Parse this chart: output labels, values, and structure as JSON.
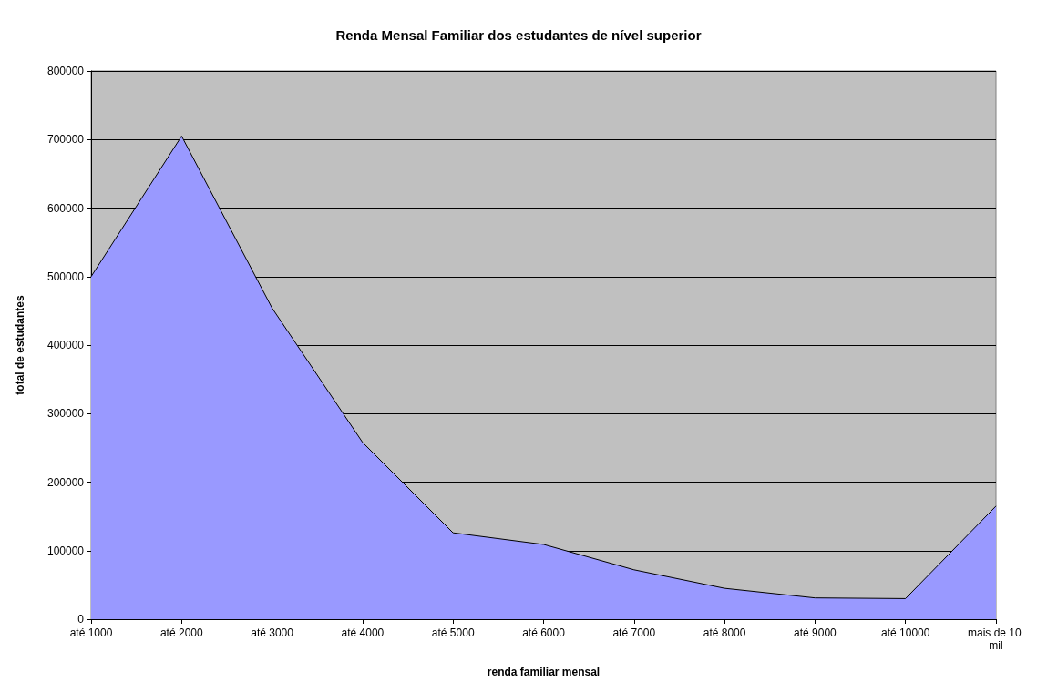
{
  "chart_data": {
    "type": "area",
    "title": "Renda Mensal Familiar dos estudantes de nível superior",
    "xlabel": "renda familiar mensal",
    "ylabel": "total de estudantes",
    "categories": [
      "até 1000",
      "até 2000",
      "até 3000",
      "até 4000",
      "até 5000",
      "até 6000",
      "até 7000",
      "até 8000",
      "até 9000",
      "até 10000",
      "mais de 10 mil"
    ],
    "series": [
      {
        "color": "#9999ff",
        "values": [
          500000,
          705000,
          454000,
          258000,
          126000,
          109000,
          72000,
          45000,
          31000,
          30000,
          165000
        ]
      }
    ],
    "ylim": [
      0,
      800000
    ],
    "yticks": [
      0,
      100000,
      200000,
      300000,
      400000,
      500000,
      600000,
      700000,
      800000
    ],
    "grid": "y",
    "marker": "none",
    "line_style": "solid"
  }
}
